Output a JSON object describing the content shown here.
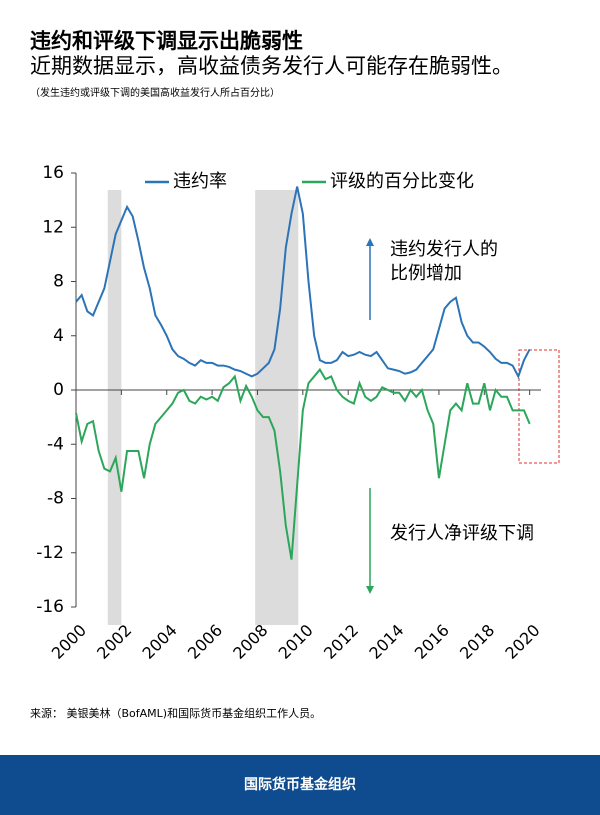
{
  "chart_data": {
    "type": "line",
    "title": "违约和评级下调显示出脆弱性",
    "subtitle": "近期数据显示，高收益债务发行人可能存在脆弱性。",
    "note": "（发生违约或评级下调的美国高收益发行人所占百分比）",
    "x": [
      2000,
      2000.25,
      2000.5,
      2000.75,
      2001,
      2001.25,
      2001.5,
      2001.75,
      2002,
      2002.25,
      2002.5,
      2002.75,
      2003,
      2003.25,
      2003.5,
      2003.75,
      2004,
      2004.25,
      2004.5,
      2004.75,
      2005,
      2005.25,
      2005.5,
      2005.75,
      2006,
      2006.25,
      2006.5,
      2006.75,
      2007,
      2007.25,
      2007.5,
      2007.75,
      2008,
      2008.25,
      2008.5,
      2008.75,
      2009,
      2009.25,
      2009.5,
      2009.75,
      2010,
      2010.25,
      2010.5,
      2010.75,
      2011,
      2011.25,
      2011.5,
      2011.75,
      2012,
      2012.25,
      2012.5,
      2012.75,
      2013,
      2013.25,
      2013.5,
      2013.75,
      2014,
      2014.25,
      2014.5,
      2014.75,
      2015,
      2015.25,
      2015.5,
      2015.75,
      2016,
      2016.25,
      2016.5,
      2016.75,
      2017,
      2017.25,
      2017.5,
      2017.75,
      2018,
      2018.25,
      2018.5,
      2018.75,
      2019,
      2019.25,
      2019.5,
      2019.75,
      2020
    ],
    "series": [
      {
        "name": "违约率",
        "color": "#2b74b8",
        "values": [
          6.5,
          7.0,
          5.8,
          5.5,
          6.5,
          7.5,
          9.5,
          11.5,
          12.5,
          13.5,
          12.8,
          11.0,
          9.0,
          7.5,
          5.5,
          4.8,
          4.0,
          3.0,
          2.5,
          2.3,
          2.0,
          1.8,
          2.2,
          2.0,
          2.0,
          1.8,
          1.8,
          1.7,
          1.5,
          1.4,
          1.2,
          1.0,
          1.2,
          1.6,
          2.0,
          3.0,
          6.0,
          10.5,
          13.0,
          15.0,
          13.0,
          8.0,
          4.0,
          2.2,
          2.0,
          2.0,
          2.2,
          2.8,
          2.5,
          2.6,
          2.8,
          2.6,
          2.5,
          2.8,
          2.2,
          1.6,
          1.5,
          1.4,
          1.2,
          1.3,
          1.5,
          2.0,
          2.5,
          3.0,
          4.5,
          6.0,
          6.5,
          6.8,
          5.0,
          4.0,
          3.5,
          3.5,
          3.2,
          2.8,
          2.3,
          2.0,
          2.0,
          1.8,
          1.0,
          2.2,
          3.0
        ]
      },
      {
        "name": "评级的百分比变化",
        "color": "#2ca65a",
        "values": [
          -1.7,
          -3.8,
          -2.5,
          -2.3,
          -4.5,
          -5.8,
          -6.0,
          -5.0,
          -7.5,
          -4.5,
          -4.5,
          -4.5,
          -6.5,
          -4.0,
          -2.5,
          -2.0,
          -1.5,
          -1.0,
          -0.2,
          0.0,
          -0.8,
          -1.0,
          -0.5,
          -0.7,
          -0.5,
          -0.8,
          0.2,
          0.5,
          1.0,
          -0.8,
          0.3,
          -0.5,
          -1.5,
          -2.0,
          -2.0,
          -3.0,
          -6.0,
          -10.0,
          -12.5,
          -7.0,
          -1.5,
          0.5,
          1.0,
          1.5,
          0.8,
          1.0,
          0.0,
          -0.5,
          -0.8,
          -1.0,
          0.5,
          -0.5,
          -0.8,
          -0.5,
          0.2,
          0.0,
          -0.2,
          -0.2,
          -0.8,
          0.0,
          -0.5,
          0.0,
          -1.5,
          -2.5,
          -6.5,
          -4.0,
          -1.5,
          -1.0,
          -1.5,
          0.5,
          -1.0,
          -1.0,
          0.5,
          -1.5,
          0.0,
          -0.5,
          -0.5,
          -1.5,
          -1.5,
          -1.5,
          -2.5
        ]
      }
    ],
    "shaded_ranges": [
      [
        2001.4,
        2002.0
      ],
      [
        2007.9,
        2009.8
      ]
    ],
    "xlim": [
      2000,
      2020.5
    ],
    "xticks": [
      2000,
      2002,
      2004,
      2006,
      2008,
      2010,
      2012,
      2014,
      2016,
      2018,
      2020
    ],
    "ylim": [
      -16,
      16
    ],
    "yticks": [
      16,
      12,
      8,
      4,
      0,
      -4,
      -8,
      -12,
      -16
    ],
    "annotations": [
      "违约发行人的",
      "比例增加",
      "发行人净评级下调"
    ],
    "source": "来源： 美银美林（BofAML)和国际货币基金组织工作人员。"
  },
  "footer": "国际货币基金组织"
}
